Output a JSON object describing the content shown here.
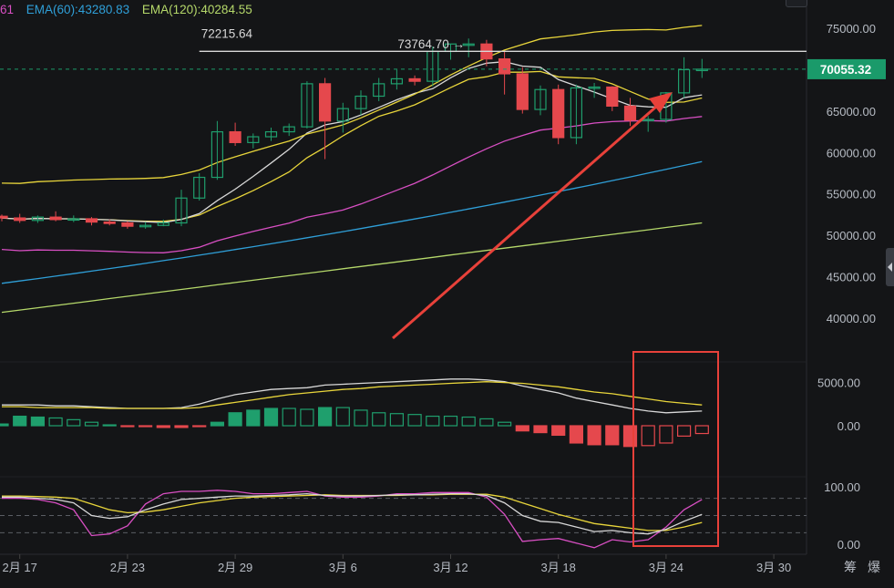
{
  "legend": {
    "cut_prefix": "61",
    "ema60": "EMA(60):43280.83",
    "ema120": "EMA(120):40284.55"
  },
  "colors": {
    "background": "#141517",
    "up": "#1f9f6d",
    "down": "#e5484d",
    "ma_white": "#d8d8d8",
    "ma_yellow": "#e8d53b",
    "ma_magenta": "#d84fc3",
    "ema60": "#2f9fd8",
    "ema120": "#b5d86a",
    "price_tag": "#1a9a6a",
    "annotation_red": "#e8413a",
    "axis_text": "#b7bcc4"
  },
  "price_axis": {
    "ticks": [
      "75000.00",
      "70000.00",
      "65000.00",
      "60000.00",
      "55000.00",
      "50000.00",
      "45000.00",
      "40000.00"
    ]
  },
  "macd_axis": {
    "ticks": [
      "5000.00",
      "0.00"
    ]
  },
  "kdj_axis": {
    "ticks": [
      "100.00",
      "0.00"
    ]
  },
  "current_price": "70055.32",
  "annotations": {
    "high_label": "72215.64",
    "peak_label": "73764.70 →"
  },
  "x_axis": {
    "dates": [
      "2月 17",
      "2月 23",
      "2月 29",
      "3月 6",
      "3月 12",
      "3月 18",
      "3月 24",
      "3月 30"
    ]
  },
  "bottom_right": {
    "label1": "筹",
    "label2": "爆"
  },
  "chart_data": {
    "type": "candlestick",
    "x": [
      "2/16",
      "2/17",
      "2/18",
      "2/19",
      "2/20",
      "2/21",
      "2/22",
      "2/23",
      "2/24",
      "2/25",
      "2/26",
      "2/27",
      "2/28",
      "2/29",
      "3/1",
      "3/2",
      "3/3",
      "3/4",
      "3/5",
      "3/6",
      "3/7",
      "3/8",
      "3/9",
      "3/10",
      "3/11",
      "3/12",
      "3/13",
      "3/14",
      "3/15",
      "3/16",
      "3/17",
      "3/18",
      "3/19",
      "3/20",
      "3/21",
      "3/22",
      "3/23",
      "3/24",
      "3/25",
      "3/26"
    ],
    "open": [
      52300,
      52100,
      51800,
      52200,
      51900,
      52000,
      51600,
      51500,
      51100,
      51200,
      51500,
      54500,
      57000,
      62500,
      61200,
      61900,
      62500,
      63100,
      68300,
      63800,
      65300,
      66800,
      68300,
      68900,
      68600,
      72200,
      73100,
      73100,
      71300,
      69500,
      65200,
      67600,
      61800,
      67800,
      67900,
      65600,
      63900,
      64000,
      67200,
      70000
    ],
    "close": [
      52100,
      51800,
      52200,
      51900,
      52000,
      51600,
      51500,
      51100,
      51200,
      51500,
      54500,
      57000,
      62500,
      61200,
      61900,
      62500,
      63100,
      68300,
      63800,
      65300,
      66800,
      68300,
      68900,
      68600,
      72200,
      73100,
      73100,
      71300,
      69500,
      65200,
      67600,
      61800,
      67800,
      67900,
      65600,
      63900,
      64000,
      67200,
      70000,
      70055
    ],
    "high": [
      52500,
      52600,
      52400,
      52900,
      52400,
      52200,
      51900,
      51700,
      51600,
      51900,
      55500,
      57500,
      63800,
      63600,
      62300,
      63000,
      63500,
      68600,
      69000,
      66000,
      67500,
      69000,
      70000,
      69300,
      72800,
      73100,
      73764,
      73600,
      72300,
      70300,
      68100,
      68200,
      68200,
      68400,
      68000,
      66600,
      64400,
      67300,
      71500,
      71300
    ],
    "low": [
      51700,
      51500,
      51500,
      51700,
      51600,
      51200,
      51200,
      50800,
      50800,
      51100,
      51100,
      54200,
      56700,
      60800,
      60500,
      61400,
      62000,
      62900,
      59200,
      62400,
      64500,
      66200,
      67600,
      68100,
      68000,
      71200,
      71500,
      70400,
      67000,
      64700,
      64500,
      61000,
      61000,
      66600,
      65000,
      63200,
      62500,
      63600,
      66600,
      69000
    ],
    "ema60_last": 43280.83,
    "ema120_last": 40284.55,
    "current_price": 70055.32,
    "marked_high": 72215.64,
    "peak_high": 73764.7,
    "macd": {
      "ticks": [
        5000,
        0
      ],
      "hist": [
        200,
        1100,
        1000,
        900,
        700,
        400,
        100,
        -100,
        -100,
        -200,
        -200,
        -100,
        400,
        1500,
        1800,
        2000,
        2000,
        1900,
        2100,
        2100,
        1800,
        1500,
        1400,
        1300,
        1100,
        1100,
        1000,
        800,
        400,
        -600,
        -800,
        -1100,
        -2000,
        -2200,
        -2200,
        -2400,
        -2300,
        -2000,
        -1200,
        -900
      ],
      "dif": [
        2400,
        2400,
        2400,
        2300,
        2300,
        2200,
        2100,
        2000,
        2000,
        2000,
        2100,
        2500,
        3100,
        3600,
        3900,
        4200,
        4300,
        4400,
        4700,
        4800,
        4900,
        5000,
        5100,
        5200,
        5300,
        5400,
        5400,
        5300,
        5100,
        4600,
        4200,
        3800,
        3200,
        2800,
        2400,
        2000,
        1700,
        1500,
        1600,
        1700
      ],
      "dea": [
        2200,
        2200,
        2100,
        2100,
        2100,
        2100,
        2000,
        2000,
        2000,
        2000,
        2000,
        2100,
        2400,
        2700,
        3000,
        3300,
        3600,
        3800,
        4000,
        4200,
        4300,
        4500,
        4600,
        4700,
        4800,
        4900,
        5000,
        5100,
        5000,
        4900,
        4700,
        4500,
        4200,
        3900,
        3700,
        3400,
        3100,
        2800,
        2600,
        2400
      ]
    },
    "kdj": {
      "ticks": [
        100,
        0
      ],
      "k": [
        82,
        82,
        80,
        78,
        72,
        50,
        45,
        48,
        60,
        70,
        78,
        80,
        82,
        84,
        84,
        85,
        86,
        88,
        85,
        84,
        84,
        85,
        86,
        86,
        87,
        88,
        88,
        85,
        72,
        50,
        40,
        38,
        30,
        22,
        24,
        20,
        18,
        26,
        40,
        52
      ],
      "d": [
        84,
        84,
        83,
        82,
        80,
        70,
        60,
        55,
        56,
        60,
        66,
        72,
        76,
        80,
        82,
        83,
        84,
        85,
        86,
        85,
        85,
        85,
        85,
        86,
        86,
        87,
        87,
        87,
        82,
        72,
        62,
        52,
        44,
        36,
        32,
        28,
        24,
        24,
        30,
        38
      ],
      "j": [
        80,
        80,
        78,
        72,
        60,
        15,
        18,
        32,
        70,
        88,
        92,
        92,
        94,
        92,
        88,
        88,
        90,
        92,
        84,
        82,
        82,
        84,
        88,
        88,
        90,
        90,
        90,
        82,
        52,
        5,
        8,
        10,
        2,
        -6,
        8,
        4,
        8,
        30,
        60,
        78
      ]
    }
  }
}
